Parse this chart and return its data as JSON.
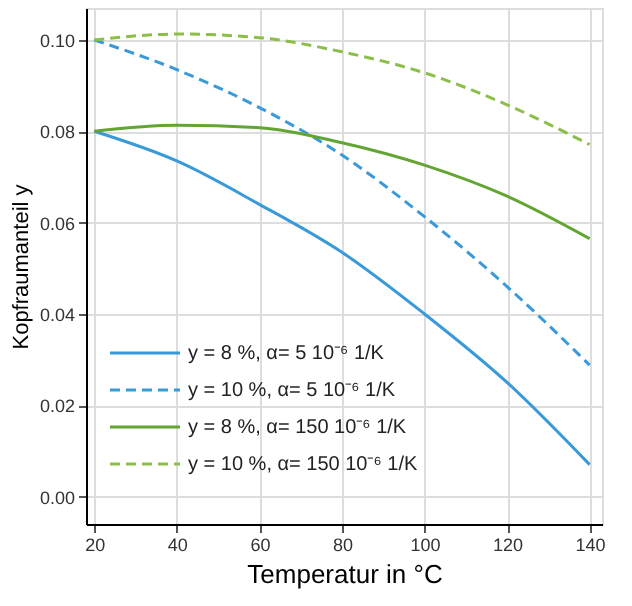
{
  "chart_data": {
    "type": "line",
    "xlabel": "Temperatur in °C",
    "ylabel": "Kopfraumanteil y",
    "xlim": [
      18,
      143
    ],
    "xticks": [
      20,
      40,
      60,
      80,
      100,
      120,
      140
    ],
    "ylim": [
      -0.006,
      0.107
    ],
    "yticks": [
      {
        "value": 0,
        "label": "0.00"
      },
      {
        "value": 0.02,
        "label": "0.02"
      },
      {
        "value": 0.04,
        "label": "0.04"
      },
      {
        "value": 0.06,
        "label": "0.06"
      },
      {
        "value": 0.08,
        "label": "0.08"
      },
      {
        "value": 0.1,
        "label": "0.10"
      }
    ],
    "x": [
      20,
      40,
      60,
      80,
      100,
      120,
      140
    ],
    "series": [
      {
        "name": "y = 8 %, α= 5 10⁻⁶ 1/K",
        "color": "#3a9ad9",
        "line_style": "solid",
        "values": [
          0.08,
          0.0735,
          0.064,
          0.0535,
          0.04,
          0.025,
          0.007
        ]
      },
      {
        "name": "y = 10 %, α= 5 10⁻⁶ 1/K",
        "color": "#3a9ad9",
        "line_style": "dashed",
        "values": [
          0.1,
          0.0935,
          0.0852,
          0.0748,
          0.0613,
          0.046,
          0.0288
        ]
      },
      {
        "name": "y = 8 %, α= 150 10⁻⁶ 1/K",
        "color": "#63a532",
        "line_style": "solid",
        "values": [
          0.08,
          0.0813,
          0.0808,
          0.0775,
          0.0726,
          0.0658,
          0.0565
        ]
      },
      {
        "name": "y = 10 %, α= 150 10⁻⁶ 1/K",
        "color": "#8bbf4a",
        "line_style": "dashed",
        "values": [
          0.1,
          0.1013,
          0.1005,
          0.0974,
          0.0928,
          0.0858,
          0.0771
        ]
      }
    ],
    "grid": true,
    "legend": "bottom left",
    "marker": "none"
  }
}
